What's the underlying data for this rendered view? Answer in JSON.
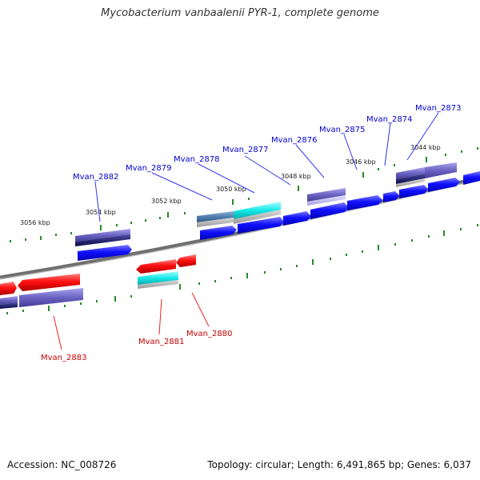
{
  "title": "Mycobacterium vanbaalenii PYR-1, complete genome",
  "footer": {
    "accession": "Accession: NC_008726",
    "stats": "Topology: circular; Length: 6,491,865 bp; Genes: 6,037"
  },
  "ticks": [
    "3056 kbp",
    "3054 kbp",
    "3052 kbp",
    "3050 kbp",
    "3048 kbp",
    "3046 kbp",
    "3044 kbp"
  ],
  "genes_forward": [
    "Mvan_2882",
    "Mvan_2879",
    "Mvan_2878",
    "Mvan_2877",
    "Mvan_2876",
    "Mvan_2875",
    "Mvan_2874",
    "Mvan_2873"
  ],
  "genes_reverse": [
    "Mvan_2883",
    "Mvan_2881",
    "Mvan_2880"
  ],
  "colors": {
    "forward_label": "#0000cc",
    "reverse_label": "#cc0000",
    "forward_gene": "#1a1aff",
    "reverse_gene": "#ee0000",
    "cyan_feature": "#19e6e6",
    "slate_feature": "#6a63c2",
    "tick": "#2a8a2a"
  }
}
